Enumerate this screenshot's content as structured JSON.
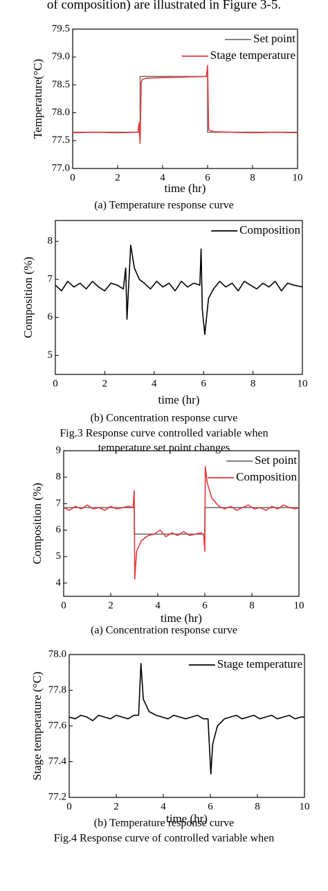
{
  "page_text": "of composition) are illustrated in Figure 3-5.",
  "chart_data": [
    {
      "type": "line",
      "xlabel": "time (hr)",
      "ylabel": "Temperature(°C)",
      "caption": "(a) Temperature response curve",
      "xlim": [
        0,
        10
      ],
      "xticks": [
        0,
        2,
        4,
        6,
        8,
        10
      ],
      "ylim": [
        77.0,
        79.5
      ],
      "yticks": [
        {
          "value": 77,
          "label": "77.0"
        },
        77.5,
        {
          "value": 78,
          "label": "78.0"
        },
        78.5,
        {
          "value": 79,
          "label": "79.0"
        },
        79.5
      ],
      "legend": "upper right",
      "series": [
        {
          "name": "Set point",
          "color": "#707070",
          "x": [
            0,
            3,
            3,
            6,
            6,
            10
          ],
          "values": [
            77.65,
            77.65,
            78.65,
            78.65,
            77.65,
            77.65
          ]
        },
        {
          "name": "Stage temperature",
          "color": "#e8383b",
          "x": [
            0,
            1,
            2,
            2.9,
            2.95,
            3.0,
            3.05,
            3.1,
            3.3,
            4,
            5,
            5.9,
            5.95,
            6.0,
            6.05,
            6.1,
            6.3,
            7,
            8,
            9,
            10
          ],
          "values": [
            77.64,
            77.65,
            77.64,
            77.65,
            77.82,
            77.45,
            78.55,
            78.6,
            78.62,
            78.63,
            78.64,
            78.65,
            78.66,
            78.85,
            77.7,
            77.68,
            77.66,
            77.65,
            77.64,
            77.65,
            77.64
          ]
        }
      ]
    },
    {
      "type": "line",
      "xlabel": "time (hr)",
      "ylabel": "Composition (%)",
      "caption": "(b) Concentration response curve",
      "xlim": [
        0,
        10
      ],
      "xticks": [
        0,
        2,
        4,
        6,
        8,
        10
      ],
      "ylim": [
        4.5,
        8.55
      ],
      "yticks": [
        5,
        6,
        7,
        8
      ],
      "legend": "upper right",
      "series": [
        {
          "name": "Composition",
          "color": "#000000",
          "x": [
            0,
            0.25,
            0.5,
            0.75,
            1,
            1.25,
            1.5,
            1.75,
            2,
            2.25,
            2.5,
            2.75,
            2.85,
            2.9,
            2.95,
            3.05,
            3.2,
            3.4,
            3.6,
            3.85,
            4.1,
            4.35,
            4.6,
            4.85,
            5.1,
            5.35,
            5.6,
            5.85,
            5.9,
            5.95,
            6.05,
            6.2,
            6.4,
            6.65,
            6.9,
            7.15,
            7.4,
            7.65,
            7.9,
            8.15,
            8.4,
            8.65,
            8.9,
            9.15,
            9.4,
            9.65,
            10
          ],
          "values": [
            6.85,
            6.7,
            6.95,
            6.8,
            6.9,
            6.75,
            6.95,
            6.8,
            6.7,
            6.9,
            6.85,
            6.75,
            7.3,
            5.95,
            6.6,
            7.9,
            7.3,
            7.0,
            6.9,
            6.75,
            6.95,
            6.8,
            6.9,
            6.7,
            6.95,
            6.8,
            6.9,
            6.85,
            7.8,
            6.2,
            5.55,
            6.5,
            6.75,
            6.95,
            6.8,
            6.9,
            6.7,
            6.95,
            6.85,
            6.75,
            6.9,
            6.8,
            6.95,
            6.7,
            6.9,
            6.85,
            6.8
          ]
        }
      ]
    },
    {
      "type": "line",
      "xlabel": "time (hr)",
      "ylabel": "Composition (%)",
      "caption": "(a) Concentration response curve",
      "xlim": [
        0,
        10
      ],
      "xticks": [
        0,
        2,
        4,
        6,
        8,
        10
      ],
      "ylim": [
        3.5,
        9
      ],
      "yticks": [
        4,
        5,
        6,
        7,
        8,
        9
      ],
      "legend": "upper right",
      "series": [
        {
          "name": "Set point",
          "color": "#707070",
          "x": [
            0,
            3,
            3,
            6,
            6,
            10
          ],
          "values": [
            6.85,
            6.85,
            5.85,
            5.85,
            6.85,
            6.85
          ]
        },
        {
          "name": "Composition",
          "color": "#e8383b",
          "x": [
            0,
            0.25,
            0.5,
            0.75,
            1,
            1.25,
            1.5,
            1.75,
            2,
            2.25,
            2.5,
            2.75,
            2.95,
            3.0,
            3.02,
            3.1,
            3.3,
            3.6,
            3.85,
            4.1,
            4.35,
            4.6,
            4.85,
            5.1,
            5.35,
            5.6,
            5.85,
            5.95,
            6.0,
            6.02,
            6.1,
            6.3,
            6.6,
            6.85,
            7.1,
            7.35,
            7.6,
            7.85,
            8.1,
            8.35,
            8.6,
            8.85,
            9.1,
            9.35,
            9.6,
            9.85,
            10
          ],
          "values": [
            6.85,
            6.75,
            6.9,
            6.8,
            6.95,
            6.8,
            6.85,
            6.75,
            6.9,
            6.8,
            6.85,
            6.9,
            6.85,
            7.5,
            4.15,
            5.2,
            5.6,
            5.8,
            5.85,
            6.0,
            5.75,
            5.9,
            5.8,
            5.95,
            5.8,
            5.85,
            5.9,
            5.8,
            5.2,
            8.4,
            7.8,
            7.2,
            6.9,
            6.8,
            6.9,
            6.75,
            6.85,
            6.95,
            6.8,
            6.85,
            6.75,
            6.9,
            6.8,
            6.95,
            6.85,
            6.8,
            6.85
          ]
        }
      ]
    },
    {
      "type": "line",
      "xlabel": "time (hr)",
      "ylabel": "Stage temperature (°C)",
      "caption": "(b) Temperature response curve",
      "xlim": [
        0,
        10
      ],
      "xticks": [
        0,
        2,
        4,
        6,
        8,
        10
      ],
      "ylim": [
        77.2,
        78.0
      ],
      "yticks": [
        77.2,
        77.4,
        77.6,
        77.8,
        {
          "value": 78,
          "label": "78.0"
        }
      ],
      "legend": "upper right",
      "series": [
        {
          "name": "Stage temperature",
          "color": "#000000",
          "x": [
            0,
            0.25,
            0.5,
            0.75,
            1,
            1.25,
            1.5,
            1.75,
            2,
            2.25,
            2.5,
            2.75,
            2.95,
            3.05,
            3.15,
            3.4,
            3.7,
            3.95,
            4.2,
            4.45,
            4.7,
            4.95,
            5.2,
            5.45,
            5.7,
            5.9,
            6.02,
            6.1,
            6.3,
            6.6,
            6.85,
            7.1,
            7.35,
            7.6,
            7.85,
            8.1,
            8.35,
            8.6,
            8.85,
            9.1,
            9.35,
            9.6,
            9.85,
            10
          ],
          "values": [
            77.65,
            77.64,
            77.66,
            77.65,
            77.63,
            77.66,
            77.65,
            77.64,
            77.66,
            77.65,
            77.64,
            77.66,
            77.66,
            77.95,
            77.75,
            77.68,
            77.66,
            77.65,
            77.64,
            77.66,
            77.65,
            77.64,
            77.65,
            77.66,
            77.64,
            77.64,
            77.33,
            77.5,
            77.6,
            77.64,
            77.65,
            77.66,
            77.64,
            77.65,
            77.66,
            77.64,
            77.65,
            77.66,
            77.64,
            77.65,
            77.66,
            77.64,
            77.65,
            77.65
          ]
        }
      ]
    }
  ],
  "figure_captions": [
    [
      "Fig.3 Response curve controlled variable when",
      "temperature set point changes"
    ],
    [
      "Fig.4 Response curve of controlled variable when"
    ]
  ]
}
